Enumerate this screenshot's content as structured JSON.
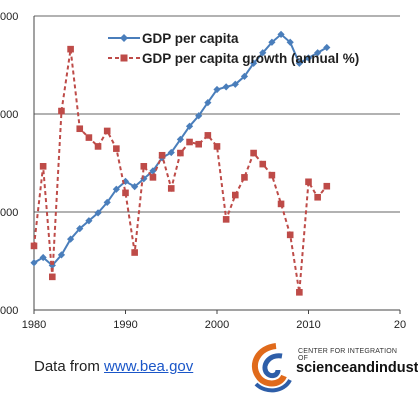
{
  "chart_data": {
    "type": "line",
    "xlim": [
      1980,
      2020
    ],
    "x_ticks": [
      "1980",
      "1990",
      "2000",
      "2010",
      "20"
    ],
    "y_tick_labels": [
      "000",
      "000",
      "000",
      "000"
    ],
    "y_gridlines": 3,
    "legend_position": "top-center",
    "series": [
      {
        "name": "GDP per capita",
        "color": "#4a7ebb",
        "marker": "diamond",
        "line": "solid",
        "x": [
          1980,
          1981,
          1982,
          1983,
          1984,
          1985,
          1986,
          1987,
          1988,
          1989,
          1990,
          1991,
          1992,
          1993,
          1994,
          1995,
          1996,
          1997,
          1998,
          1999,
          2000,
          2001,
          2002,
          2003,
          2004,
          2005,
          2006,
          2007,
          2008,
          2009,
          2010,
          2011,
          2012
        ],
        "y": [
          0.18,
          0.2,
          0.17,
          0.21,
          0.27,
          0.31,
          0.34,
          0.37,
          0.41,
          0.46,
          0.49,
          0.47,
          0.5,
          0.53,
          0.58,
          0.6,
          0.65,
          0.7,
          0.74,
          0.79,
          0.84,
          0.85,
          0.86,
          0.89,
          0.94,
          0.98,
          1.02,
          1.05,
          1.02,
          0.94,
          0.96,
          0.98,
          1.0
        ]
      },
      {
        "name": "GDP per capita growth (annual %)",
        "color": "#be4b48",
        "marker": "square",
        "line": "dashed",
        "x": [
          1980,
          1981,
          1982,
          1983,
          1984,
          1985,
          1986,
          1987,
          1988,
          1989,
          1990,
          1991,
          1992,
          1993,
          1994,
          1995,
          1996,
          1997,
          1998,
          1999,
          2000,
          2001,
          2002,
          2003,
          2004,
          2005,
          2006,
          2007,
          2008,
          2009,
          2010,
          2011,
          2012
        ],
        "y": [
          -1.1,
          2.5,
          -2.5,
          5.0,
          7.8,
          4.2,
          3.8,
          3.4,
          4.1,
          3.3,
          1.3,
          -1.4,
          2.5,
          2.0,
          3.0,
          1.5,
          3.1,
          3.6,
          3.5,
          3.9,
          3.4,
          0.1,
          1.2,
          2.0,
          3.1,
          2.6,
          2.1,
          0.8,
          -0.6,
          -3.2,
          1.8,
          1.1,
          1.6
        ]
      }
    ]
  },
  "footer": {
    "source_prefix": "Data from ",
    "source_link": "www.bea.gov"
  },
  "logo": {
    "small_text": "CENTER FOR INTEGRATION OF",
    "big_text": "scienceandindust"
  }
}
